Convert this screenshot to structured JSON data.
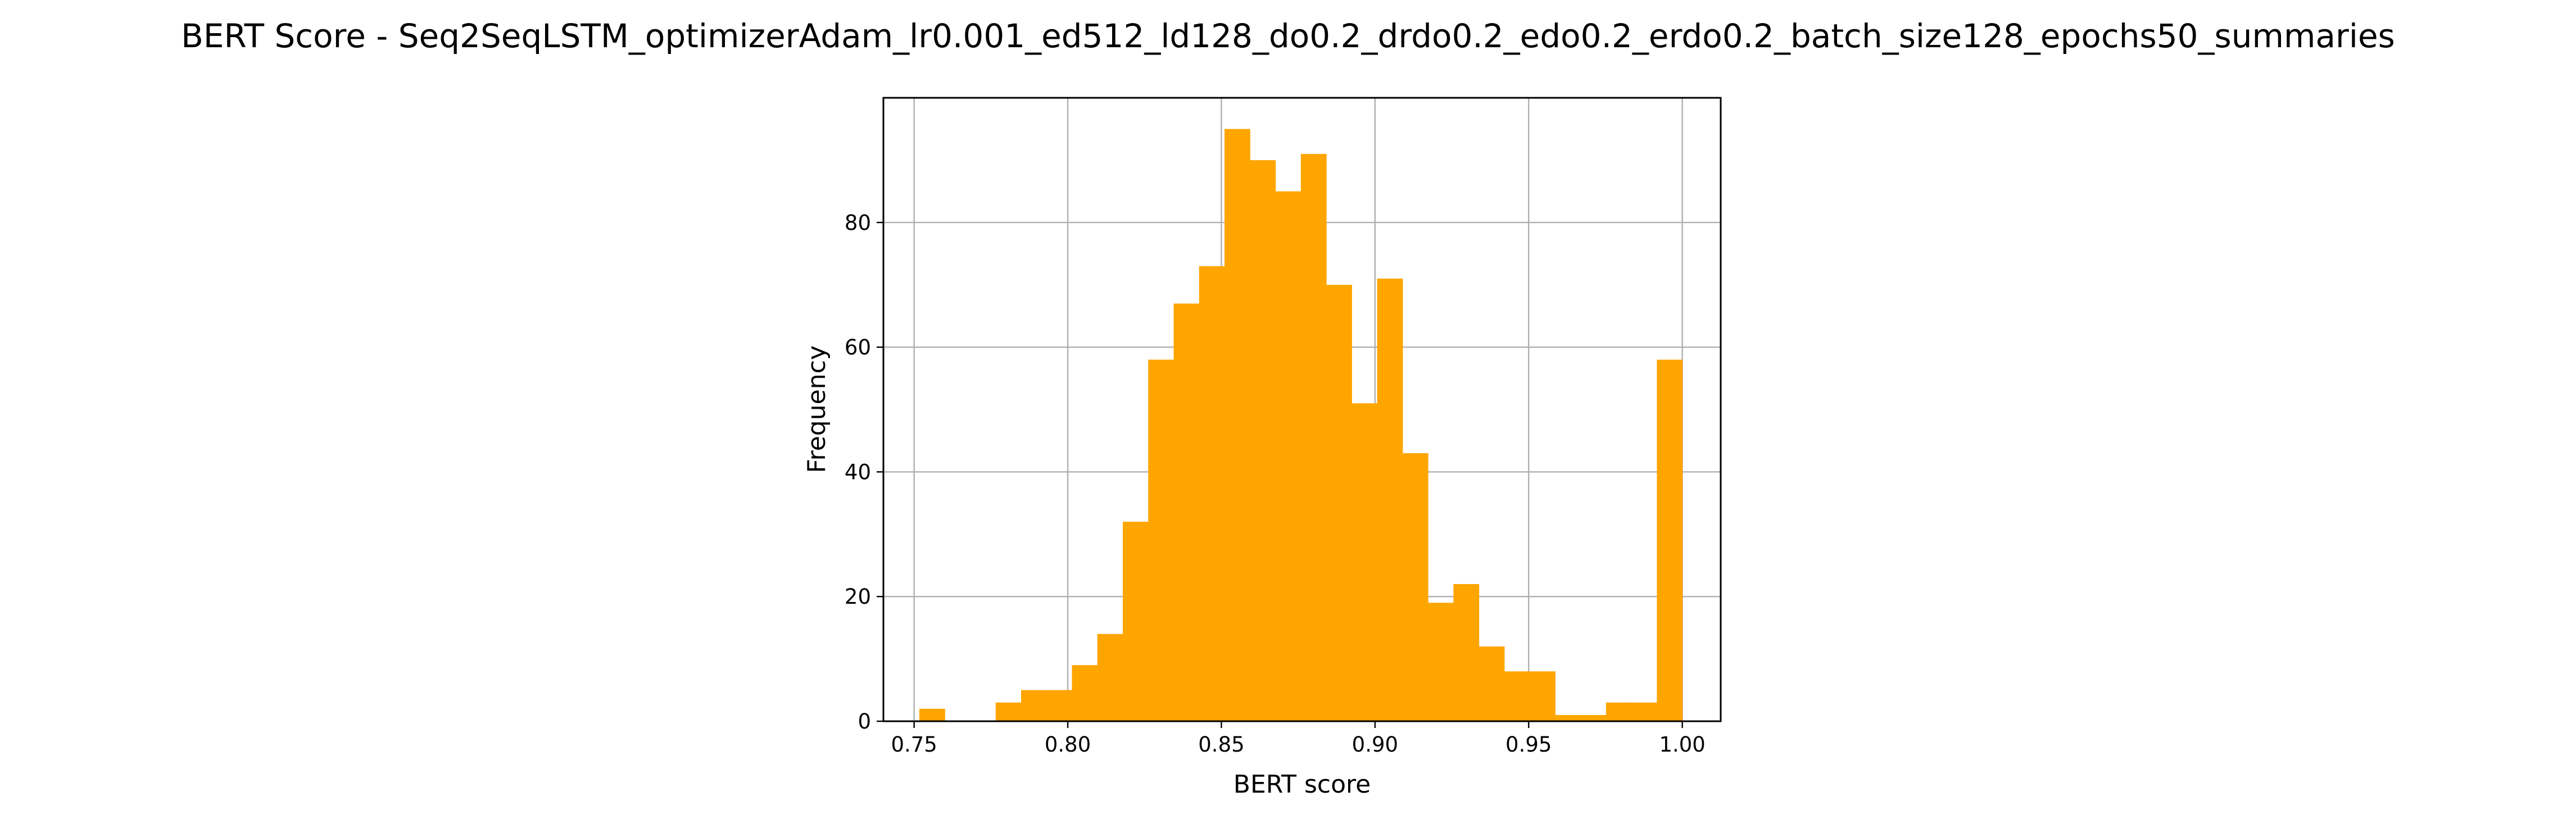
{
  "chart_data": {
    "type": "bar",
    "title": "BERT Score - Seq2SeqLSTM_optimizerAdam_lr0.001_ed512_ld128_do0.2_drdo0.2_edo0.2_erdo0.2_batch_size128_epochs50_summaries",
    "xlabel": "BERT score",
    "ylabel": "Frequency",
    "xlim": [
      0.74,
      1.0125
    ],
    "ylim": [
      0,
      100
    ],
    "xticks": [
      0.75,
      0.8,
      0.85,
      0.9,
      0.95,
      1.0
    ],
    "xtick_labels": [
      "0.75",
      "0.80",
      "0.85",
      "0.90",
      "0.95",
      "1.00"
    ],
    "yticks": [
      0,
      20,
      40,
      60,
      80
    ],
    "ytick_labels": [
      "0",
      "20",
      "40",
      "60",
      "80"
    ],
    "grid": true,
    "color": "#ffa500",
    "bin_start": 0.7517,
    "bin_end": 1.0,
    "bins": 30,
    "values": [
      2,
      0,
      0,
      3,
      5,
      5,
      9,
      14,
      32,
      58,
      67,
      73,
      95,
      90,
      85,
      91,
      70,
      51,
      71,
      43,
      19,
      22,
      12,
      8,
      8,
      1,
      1,
      3,
      3,
      58
    ]
  }
}
